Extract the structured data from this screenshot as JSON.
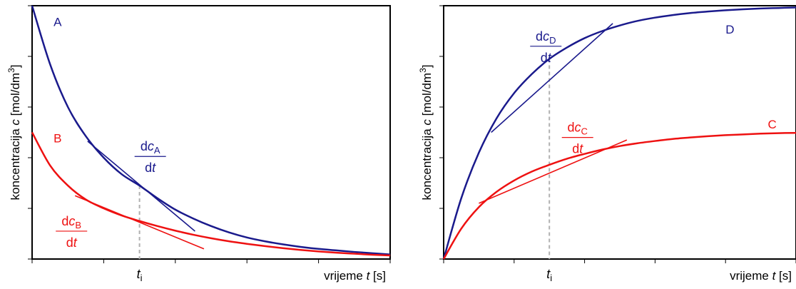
{
  "colors": {
    "blue": "#1a1a8c",
    "red": "#ee1111",
    "axis": "#000000",
    "guide": "#b0b0b0"
  },
  "chart_data": [
    {
      "type": "line",
      "panel": "left",
      "xlabel": {
        "pre": "vrijeme ",
        "var": "t",
        "post": " [s]"
      },
      "ylabel": {
        "pre": "koncentracija ",
        "var": "c",
        "post": " [mol/dm",
        "sup": "3",
        "end": "]"
      },
      "xlim": [
        0,
        10
      ],
      "ylim": [
        0,
        10
      ],
      "marker": {
        "x": 3,
        "label": "t",
        "sub": "i"
      },
      "series": [
        {
          "name": "A",
          "color": "#1a1a8c",
          "x": [
            0,
            0.5,
            1,
            1.5,
            2,
            2.5,
            3,
            3.5,
            4,
            4.5,
            5,
            5.5,
            6,
            6.5,
            7,
            7.5,
            8,
            8.5,
            9,
            9.5,
            10
          ],
          "y": [
            10,
            7.7,
            6.0,
            4.85,
            4.0,
            3.35,
            2.9,
            2.4,
            1.95,
            1.6,
            1.3,
            1.05,
            0.85,
            0.7,
            0.58,
            0.48,
            0.4,
            0.34,
            0.28,
            0.23,
            0.18
          ]
        },
        {
          "name": "B",
          "color": "#ee1111",
          "x": [
            0,
            0.5,
            1,
            1.5,
            2,
            2.5,
            3,
            3.5,
            4,
            4.5,
            5,
            5.5,
            6,
            6.5,
            7,
            7.5,
            8,
            8.5,
            9,
            9.5,
            10
          ],
          "y": [
            5.0,
            3.7,
            2.9,
            2.35,
            2.0,
            1.72,
            1.5,
            1.3,
            1.12,
            0.96,
            0.82,
            0.7,
            0.6,
            0.51,
            0.43,
            0.36,
            0.3,
            0.25,
            0.21,
            0.17,
            0.14
          ]
        }
      ],
      "tangents": [
        {
          "series": "A",
          "color": "#1a1a8c",
          "x0": 1.55,
          "x1": 4.55,
          "y0": 4.65,
          "y1": 1.1,
          "label": {
            "num_pre": "d",
            "num_var": "c",
            "num_sub": "A",
            "den_pre": "d",
            "den_var": "t",
            "x": 3.3,
            "y": 4.05
          }
        },
        {
          "series": "B",
          "color": "#ee1111",
          "x0": 1.2,
          "x1": 4.8,
          "y0": 2.5,
          "y1": 0.4,
          "label": {
            "num_pre": "d",
            "num_var": "c",
            "num_sub": "B",
            "den_pre": "d",
            "den_var": "t",
            "x": 1.1,
            "y": 1.1
          }
        }
      ],
      "curve_labels": [
        {
          "text": "A",
          "x": 0.6,
          "y": 9.2
        },
        {
          "text": "B",
          "x": 0.6,
          "y": 4.6
        }
      ]
    },
    {
      "type": "line",
      "panel": "right",
      "xlabel": {
        "pre": "vrijeme ",
        "var": "t",
        "post": " [s]"
      },
      "ylabel": {
        "pre": "koncentracija ",
        "var": "c",
        "post": " [mol/dm",
        "sup": "3",
        "end": "]"
      },
      "xlim": [
        0,
        10
      ],
      "ylim": [
        0,
        10
      ],
      "marker": {
        "x": 3,
        "label": "t",
        "sub": "i"
      },
      "series": [
        {
          "name": "D",
          "color": "#1a1a8c",
          "x": [
            0,
            0.5,
            1,
            1.5,
            2,
            2.5,
            3,
            3.5,
            4,
            4.5,
            5,
            5.5,
            6,
            6.5,
            7,
            7.5,
            8,
            8.5,
            9,
            9.5,
            10
          ],
          "y": [
            0,
            2.4,
            4.2,
            5.55,
            6.55,
            7.3,
            7.9,
            8.35,
            8.72,
            9.0,
            9.22,
            9.4,
            9.53,
            9.63,
            9.71,
            9.77,
            9.82,
            9.86,
            9.89,
            9.91,
            9.93
          ]
        },
        {
          "name": "C",
          "color": "#ee1111",
          "x": [
            0,
            0.5,
            1,
            1.5,
            2,
            2.5,
            3,
            3.5,
            4,
            4.5,
            5,
            5.5,
            6,
            6.5,
            7,
            7.5,
            8,
            8.5,
            9,
            9.5,
            10
          ],
          "y": [
            0,
            1.2,
            2.05,
            2.65,
            3.1,
            3.45,
            3.72,
            3.96,
            4.15,
            4.32,
            4.46,
            4.57,
            4.66,
            4.74,
            4.8,
            4.85,
            4.89,
            4.92,
            4.95,
            4.97,
            4.98
          ]
        }
      ],
      "tangents": [
        {
          "series": "D",
          "color": "#1a1a8c",
          "x0": 1.35,
          "x1": 4.8,
          "y0": 5.0,
          "y1": 9.3,
          "label": {
            "num_pre": "d",
            "num_var": "c",
            "num_sub": "D",
            "den_pre": "d",
            "den_var": "t",
            "x": 2.9,
            "y": 8.4
          }
        },
        {
          "series": "C",
          "color": "#ee1111",
          "x0": 1.0,
          "x1": 5.2,
          "y0": 2.2,
          "y1": 4.7,
          "label": {
            "num_pre": "d",
            "num_var": "c",
            "num_sub": "C",
            "den_pre": "d",
            "den_var": "t",
            "x": 3.8,
            "y": 4.8
          }
        }
      ],
      "curve_labels": [
        {
          "text": "D",
          "x": 8.0,
          "y": 8.9
        },
        {
          "text": "C",
          "x": 9.2,
          "y": 5.15
        }
      ]
    }
  ]
}
